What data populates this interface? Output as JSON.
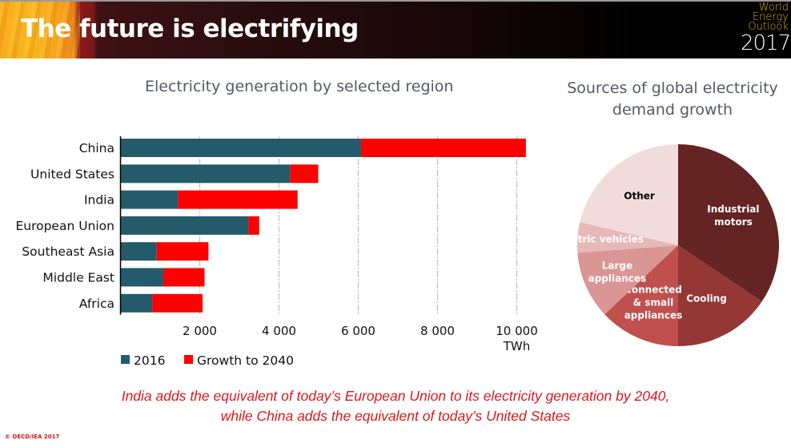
{
  "header": {
    "title": "The future is electrifying",
    "logo_lines": [
      "World",
      "Energy",
      "Outlook"
    ],
    "logo_year": "2017"
  },
  "chart_data": [
    {
      "type": "bar",
      "orientation": "horizontal",
      "stacked": true,
      "title": "Electricity generation by selected region",
      "categories": [
        "China",
        "United States",
        "India",
        "European Union",
        "Southeast Asia",
        "Middle East",
        "Africa"
      ],
      "series": [
        {
          "name": "2016",
          "color": "#235b6a",
          "values": [
            6070,
            4280,
            1450,
            3230,
            915,
            1080,
            800
          ]
        },
        {
          "name": "Growth to 2040",
          "color": "#ff0000",
          "values": [
            4160,
            710,
            3020,
            270,
            1305,
            1040,
            1270
          ]
        }
      ],
      "xlabel": "TWh",
      "xlim": [
        0,
        10500
      ],
      "xticks": [
        2000,
        4000,
        6000,
        8000,
        10000
      ],
      "xtick_labels": [
        "2 000",
        "4 000",
        "6 000",
        "8 000",
        "10 000"
      ],
      "grid": "vertical-dashed",
      "legend": "bottom-left"
    },
    {
      "type": "pie",
      "title": "Sources of global electricity demand growth",
      "labels": [
        "Industrial motors",
        "Cooling",
        "Connected & small appliances",
        "Large appliances",
        "Electric vehicles",
        "Other"
      ],
      "values": [
        34.4,
        15.6,
        13.0,
        10.8,
        4.9,
        21.3
      ],
      "unit": "% (estimated)",
      "colors": [
        "#632423",
        "#953735",
        "#c0504d",
        "#d99694",
        "#e6b9b8",
        "#f2dcdb"
      ],
      "label_colors": [
        "#ffffff",
        "#ffffff",
        "#ffffff",
        "#ffffff",
        "#ffffff",
        "#000000"
      ],
      "start": "12 o'clock",
      "direction": "clockwise"
    }
  ],
  "footnote": {
    "line1": "India adds the equivalent of today’s European Union to its electricity generation by 2040,",
    "line2": "while China adds the equivalent of today’s United States"
  },
  "copyright": "© OECD/IEA 2017"
}
